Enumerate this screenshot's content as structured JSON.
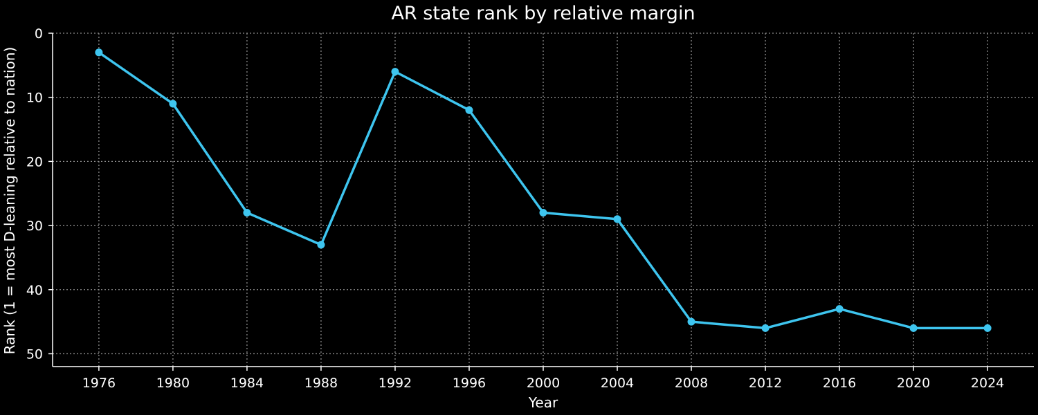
{
  "chart_data": {
    "type": "line",
    "title": "AR state rank by relative margin",
    "xlabel": "Year",
    "ylabel": "Rank (1 = most D-leaning relative to nation)",
    "x": [
      1976,
      1980,
      1984,
      1988,
      1992,
      1996,
      2000,
      2004,
      2008,
      2012,
      2016,
      2020,
      2024
    ],
    "series": [
      {
        "values": [
          3,
          11,
          28,
          33,
          6,
          12,
          28,
          29,
          45,
          46,
          43,
          46,
          46
        ],
        "color": "#3ec5ef"
      }
    ],
    "xlim": [
      1973.5,
      2026.5
    ],
    "ylim": [
      0,
      52
    ],
    "y_inverted": true,
    "x_ticks": [
      1976,
      1980,
      1984,
      1988,
      1992,
      1996,
      2000,
      2004,
      2008,
      2012,
      2016,
      2020,
      2024
    ],
    "y_ticks": [
      0,
      10,
      20,
      30,
      40,
      50
    ],
    "grid": true,
    "background": "#000000",
    "text_color": "#ffffff",
    "grid_color": "#8c8c8c"
  }
}
